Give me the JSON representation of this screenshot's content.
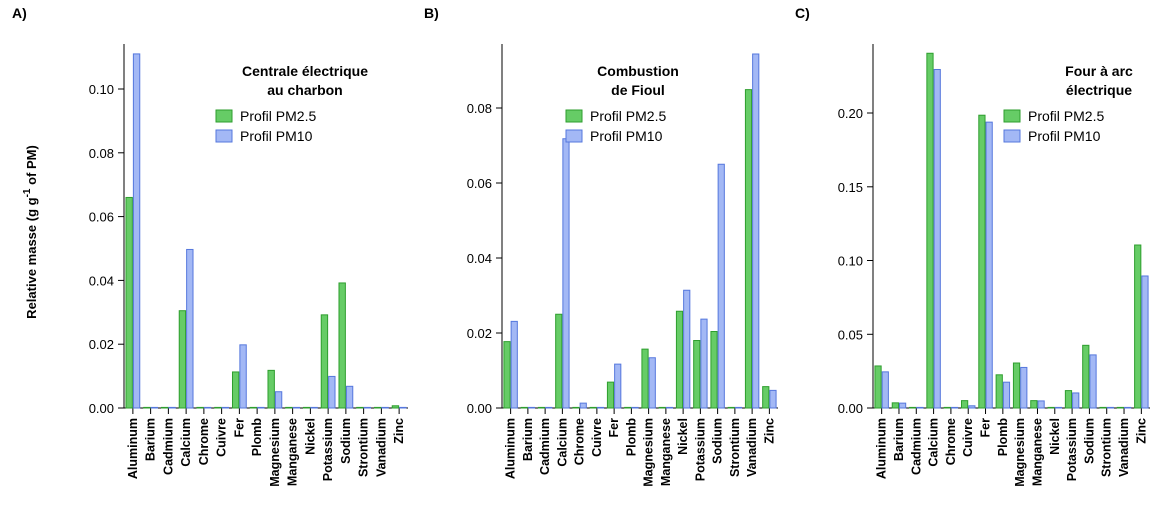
{
  "ylabel_parts": [
    "Relative masse (g g",
    "-1",
    " of PM)"
  ],
  "colors": {
    "pm25_fill": "#66cc66",
    "pm25_stroke": "#2e9e2e",
    "pm10_fill": "#a3b8f5",
    "pm10_stroke": "#5577dd"
  },
  "chart_data": [
    {
      "type": "bar",
      "panel_label": "A)",
      "title_lines": [
        "Centrale électrique",
        "au charbon"
      ],
      "categories": [
        "Aluminum",
        "Barium",
        "Cadmium",
        "Calcium",
        "Chrome",
        "Cuivre",
        "Fer",
        "Plomb",
        "Magnesium",
        "Manganese",
        "Nickel",
        "Potassium",
        "Sodium",
        "Strontium",
        "Vanadium",
        "Zinc"
      ],
      "series": [
        {
          "name": "Profil PM2.5",
          "values": [
            0.066,
            0,
            0,
            0.0305,
            0,
            0,
            0.0113,
            0,
            0.0118,
            0,
            0,
            0.0292,
            0.0392,
            0,
            0,
            0.0007
          ]
        },
        {
          "name": "Profil PM10",
          "values": [
            0.111,
            0,
            0,
            0.0497,
            0,
            0,
            0.0198,
            0,
            0.0051,
            0,
            0,
            0.0099,
            0.0068,
            0,
            0,
            0
          ]
        }
      ],
      "ylim": [
        0,
        0.112
      ],
      "yticks": [
        "0.00",
        "0.02",
        "0.04",
        "0.06",
        "0.08",
        "0.10"
      ],
      "legend_position": "top-right"
    },
    {
      "type": "bar",
      "panel_label": "B)",
      "title_lines": [
        "Combustion",
        "de Fioul"
      ],
      "categories": [
        "Aluminum",
        "Barium",
        "Cadmium",
        "Calcium",
        "Chrome",
        "Cuivre",
        "Fer",
        "Plomb",
        "Magnesium",
        "Manganese",
        "Nickel",
        "Potassium",
        "Sodium",
        "Strontium",
        "Vanadium",
        "Zinc"
      ],
      "series": [
        {
          "name": "Profil PM2.5",
          "values": [
            0.0177,
            0,
            0,
            0.025,
            0,
            0,
            0.0069,
            0,
            0.0157,
            0,
            0.0258,
            0.018,
            0.0204,
            0,
            0.0849,
            0.0057
          ]
        },
        {
          "name": "Profil PM10",
          "values": [
            0.0231,
            0,
            0,
            0.0718,
            0.0013,
            0,
            0.0117,
            0,
            0.0134,
            0,
            0.0314,
            0.0237,
            0.065,
            0,
            0.0944,
            0.0047
          ]
        }
      ],
      "ylim": [
        0,
        0.095
      ],
      "yticks": [
        "0.00",
        "0.02",
        "0.04",
        "0.06",
        "0.08"
      ],
      "legend_position": "top-right"
    },
    {
      "type": "bar",
      "panel_label": "C)",
      "title_lines": [
        "Four à arc",
        "électrique"
      ],
      "categories": [
        "Aluminum",
        "Barium",
        "Cadmium",
        "Calcium",
        "Chrome",
        "Cuivre",
        "Fer",
        "Plomb",
        "Magnesium",
        "Manganese",
        "Nickel",
        "Potassium",
        "Sodium",
        "Strontium",
        "Vanadium",
        "Zinc"
      ],
      "series": [
        {
          "name": "Profil PM2.5",
          "values": [
            0.0285,
            0.0035,
            0,
            0.2405,
            0,
            0.005,
            0.1985,
            0.0225,
            0.0305,
            0.005,
            0,
            0.0118,
            0.0425,
            0,
            0,
            0.1105
          ]
        },
        {
          "name": "Profil PM10",
          "values": [
            0.0245,
            0.0033,
            0,
            0.2295,
            0,
            0.0015,
            0.1938,
            0.0175,
            0.0275,
            0.0048,
            0,
            0.0102,
            0.036,
            0,
            0,
            0.0895
          ]
        }
      ],
      "ylim": [
        0,
        0.24
      ],
      "yticks": [
        "0.00",
        "0.05",
        "0.10",
        "0.15",
        "0.20"
      ],
      "legend_position": "top-right"
    }
  ]
}
